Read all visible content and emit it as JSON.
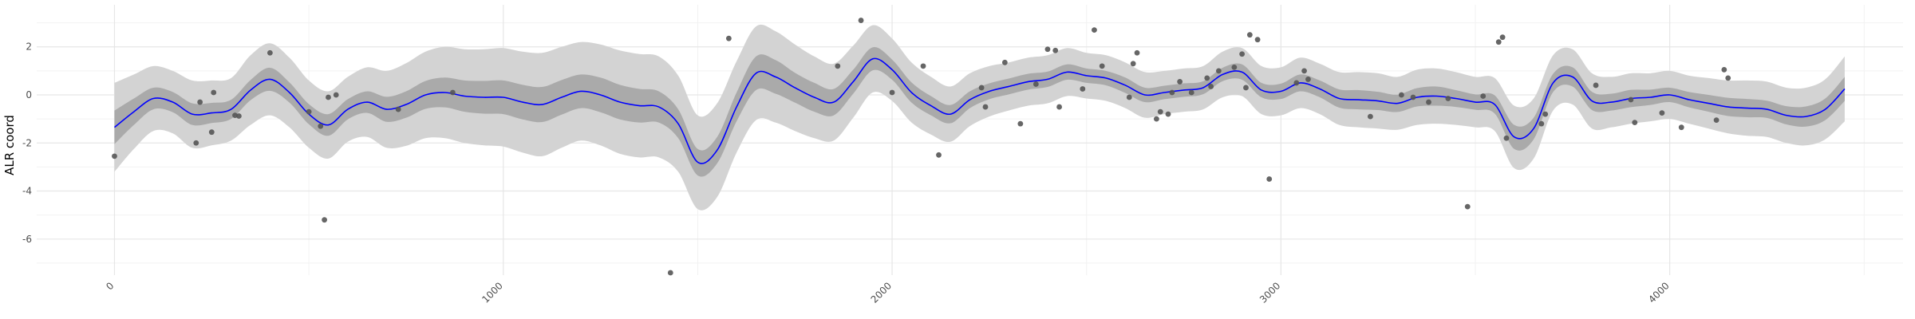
{
  "chart_data": {
    "type": "scatter",
    "title": "",
    "xlabel": "",
    "ylabel": "ALR coord",
    "xlim": [
      -200,
      4600
    ],
    "ylim": [
      -7.5,
      3.75
    ],
    "x_ticks": [
      0,
      1000,
      2000,
      3000,
      4000
    ],
    "x_tick_labels": [
      "0",
      "1000",
      "2000",
      "3000",
      "4000"
    ],
    "y_ticks": [
      -6,
      -4,
      -2,
      0,
      2
    ],
    "y_tick_labels": [
      "-6",
      "-4",
      "-2",
      "0",
      "2"
    ],
    "grid": true,
    "legend": "none",
    "colors": {
      "outer_band": "#d3d3d3",
      "inner_band": "#aaaaaa",
      "mean_line": "#0000ff",
      "points": "#555555",
      "grid_major": "#e6e6e6",
      "grid_minor": "#f2f2f2"
    },
    "mean_curve": {
      "x": [
        0,
        50,
        100,
        150,
        200,
        250,
        300,
        350,
        400,
        450,
        500,
        550,
        600,
        650,
        700,
        750,
        800,
        850,
        900,
        950,
        1000,
        1050,
        1100,
        1150,
        1200,
        1250,
        1300,
        1350,
        1400,
        1450,
        1500,
        1550,
        1600,
        1650,
        1700,
        1750,
        1800,
        1850,
        1900,
        1950,
        2000,
        2050,
        2100,
        2150,
        2200,
        2250,
        2300,
        2350,
        2400,
        2450,
        2500,
        2550,
        2600,
        2650,
        2700,
        2750,
        2800,
        2850,
        2900,
        2950,
        3000,
        3050,
        3100,
        3150,
        3200,
        3250,
        3300,
        3350,
        3400,
        3450,
        3500,
        3550,
        3600,
        3650,
        3700,
        3750,
        3800,
        3850,
        3900,
        3950,
        4000,
        4050,
        4100,
        4150,
        4200,
        4250,
        4300,
        4350,
        4400,
        4450
      ],
      "y": [
        -1.35,
        -0.7,
        -0.15,
        -0.3,
        -0.8,
        -0.75,
        -0.6,
        0.2,
        0.65,
        0.1,
        -0.8,
        -1.25,
        -0.6,
        -0.3,
        -0.6,
        -0.4,
        0.0,
        0.1,
        -0.05,
        -0.1,
        -0.1,
        -0.3,
        -0.4,
        -0.1,
        0.15,
        0.0,
        -0.3,
        -0.45,
        -0.5,
        -1.2,
        -2.8,
        -2.3,
        -0.5,
        0.9,
        0.75,
        0.3,
        -0.1,
        -0.3,
        0.55,
        1.5,
        1.05,
        0.1,
        -0.45,
        -0.8,
        -0.2,
        0.15,
        0.35,
        0.55,
        0.65,
        0.95,
        0.8,
        0.7,
        0.4,
        0.0,
        0.1,
        0.2,
        0.3,
        0.85,
        0.95,
        0.2,
        0.15,
        0.5,
        0.25,
        -0.15,
        -0.2,
        -0.25,
        -0.35,
        -0.1,
        -0.05,
        -0.15,
        -0.3,
        -0.4,
        -1.75,
        -1.4,
        0.5,
        0.75,
        -0.25,
        -0.3,
        -0.15,
        -0.1,
        0.0,
        -0.2,
        -0.35,
        -0.5,
        -0.55,
        -0.6,
        -0.85,
        -0.9,
        -0.6,
        0.25
      ]
    },
    "inner_band_halfwidth": [
      0.7,
      0.55,
      0.45,
      0.42,
      0.45,
      0.42,
      0.4,
      0.42,
      0.48,
      0.42,
      0.42,
      0.45,
      0.42,
      0.45,
      0.52,
      0.55,
      0.58,
      0.62,
      0.65,
      0.68,
      0.7,
      0.72,
      0.73,
      0.72,
      0.7,
      0.72,
      0.72,
      0.7,
      0.65,
      0.6,
      0.55,
      0.55,
      0.6,
      0.7,
      0.7,
      0.62,
      0.6,
      0.55,
      0.5,
      0.48,
      0.42,
      0.42,
      0.4,
      0.38,
      0.35,
      0.33,
      0.33,
      0.33,
      0.32,
      0.32,
      0.3,
      0.3,
      0.32,
      0.3,
      0.28,
      0.28,
      0.27,
      0.28,
      0.32,
      0.3,
      0.32,
      0.35,
      0.35,
      0.38,
      0.4,
      0.38,
      0.36,
      0.38,
      0.4,
      0.35,
      0.32,
      0.38,
      0.5,
      0.45,
      0.38,
      0.4,
      0.38,
      0.35,
      0.36,
      0.32,
      0.3,
      0.32,
      0.35,
      0.38,
      0.38,
      0.36,
      0.38,
      0.42,
      0.45,
      0.5
    ],
    "outer_band_halfwidth": [
      1.85,
      1.55,
      1.35,
      1.3,
      1.4,
      1.35,
      1.3,
      1.45,
      1.5,
      1.45,
      1.4,
      1.4,
      1.35,
      1.45,
      1.6,
      1.72,
      1.8,
      1.9,
      1.95,
      2.0,
      2.05,
      2.1,
      2.15,
      2.1,
      2.05,
      2.1,
      2.15,
      2.15,
      2.1,
      2.0,
      1.95,
      1.95,
      1.9,
      1.95,
      1.9,
      1.8,
      1.7,
      1.6,
      1.5,
      1.4,
      1.3,
      1.25,
      1.2,
      1.15,
      1.1,
      1.05,
      1.0,
      1.0,
      1.0,
      1.0,
      0.95,
      0.95,
      0.95,
      0.95,
      0.9,
      0.9,
      0.9,
      0.95,
      1.0,
      1.0,
      1.0,
      1.05,
      1.05,
      1.1,
      1.15,
      1.15,
      1.1,
      1.15,
      1.15,
      1.1,
      1.05,
      1.1,
      1.3,
      1.25,
      1.15,
      1.15,
      1.15,
      1.05,
      1.05,
      1.0,
      1.0,
      1.0,
      1.05,
      1.1,
      1.15,
      1.15,
      1.15,
      1.2,
      1.25,
      1.35
    ],
    "points": [
      {
        "x": 0,
        "y": -2.55
      },
      {
        "x": 210,
        "y": -2.0
      },
      {
        "x": 220,
        "y": -0.3
      },
      {
        "x": 250,
        "y": -1.55
      },
      {
        "x": 255,
        "y": 0.1
      },
      {
        "x": 310,
        "y": -0.85
      },
      {
        "x": 320,
        "y": -0.88
      },
      {
        "x": 400,
        "y": 1.75
      },
      {
        "x": 500,
        "y": -0.7
      },
      {
        "x": 530,
        "y": -1.3
      },
      {
        "x": 540,
        "y": -5.2
      },
      {
        "x": 550,
        "y": -0.1
      },
      {
        "x": 570,
        "y": 0.0
      },
      {
        "x": 730,
        "y": -0.6
      },
      {
        "x": 870,
        "y": 0.1
      },
      {
        "x": 1430,
        "y": -7.4
      },
      {
        "x": 1580,
        "y": 2.35
      },
      {
        "x": 1860,
        "y": 1.2
      },
      {
        "x": 1920,
        "y": 3.1
      },
      {
        "x": 2000,
        "y": 0.1
      },
      {
        "x": 2080,
        "y": 1.2
      },
      {
        "x": 2120,
        "y": -2.5
      },
      {
        "x": 2230,
        "y": 0.3
      },
      {
        "x": 2240,
        "y": -0.5
      },
      {
        "x": 2290,
        "y": 1.35
      },
      {
        "x": 2330,
        "y": -1.2
      },
      {
        "x": 2370,
        "y": 0.45
      },
      {
        "x": 2400,
        "y": 1.9
      },
      {
        "x": 2420,
        "y": 1.85
      },
      {
        "x": 2430,
        "y": -0.5
      },
      {
        "x": 2490,
        "y": 0.25
      },
      {
        "x": 2520,
        "y": 2.7
      },
      {
        "x": 2540,
        "y": 1.2
      },
      {
        "x": 2610,
        "y": -0.1
      },
      {
        "x": 2620,
        "y": 1.3
      },
      {
        "x": 2630,
        "y": 1.75
      },
      {
        "x": 2680,
        "y": -1.0
      },
      {
        "x": 2690,
        "y": -0.7
      },
      {
        "x": 2710,
        "y": -0.8
      },
      {
        "x": 2720,
        "y": 0.1
      },
      {
        "x": 2740,
        "y": 0.55
      },
      {
        "x": 2770,
        "y": 0.1
      },
      {
        "x": 2810,
        "y": 0.7
      },
      {
        "x": 2820,
        "y": 0.35
      },
      {
        "x": 2840,
        "y": 1.0
      },
      {
        "x": 2880,
        "y": 1.15
      },
      {
        "x": 2900,
        "y": 1.7
      },
      {
        "x": 2910,
        "y": 0.3
      },
      {
        "x": 2920,
        "y": 2.5
      },
      {
        "x": 2940,
        "y": 2.3
      },
      {
        "x": 2970,
        "y": -3.5
      },
      {
        "x": 3040,
        "y": 0.5
      },
      {
        "x": 3060,
        "y": 1.0
      },
      {
        "x": 3070,
        "y": 0.65
      },
      {
        "x": 3230,
        "y": -0.9
      },
      {
        "x": 3310,
        "y": 0.0
      },
      {
        "x": 3340,
        "y": -0.1
      },
      {
        "x": 3380,
        "y": -0.3
      },
      {
        "x": 3430,
        "y": -0.15
      },
      {
        "x": 3480,
        "y": -4.65
      },
      {
        "x": 3520,
        "y": -0.05
      },
      {
        "x": 3560,
        "y": 2.2
      },
      {
        "x": 3570,
        "y": 2.4
      },
      {
        "x": 3580,
        "y": -1.8
      },
      {
        "x": 3670,
        "y": -1.2
      },
      {
        "x": 3680,
        "y": -0.8
      },
      {
        "x": 3810,
        "y": 0.4
      },
      {
        "x": 3900,
        "y": -0.2
      },
      {
        "x": 3910,
        "y": -1.15
      },
      {
        "x": 3980,
        "y": -0.75
      },
      {
        "x": 4030,
        "y": -1.35
      },
      {
        "x": 4120,
        "y": -1.05
      },
      {
        "x": 4140,
        "y": 1.05
      },
      {
        "x": 4150,
        "y": 0.7
      }
    ]
  }
}
